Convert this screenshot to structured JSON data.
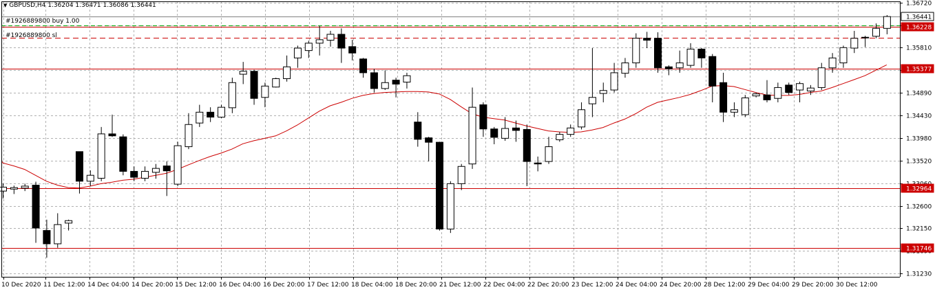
{
  "window": {
    "symbol_label": "GBPUSD,H4",
    "ohlc_text": "1.36204 1.36471 1.36086 1.36441",
    "menu_arrow": "triangle-down-icon"
  },
  "trade_labels": {
    "buy_label": "#1926889800 buy 1.00",
    "sl_label": "#1926889800 sl"
  },
  "price_tags": {
    "bid": "1.36441",
    "entry": "1.36228",
    "level_upper": "1.35377",
    "level_lower_1": "1.32964",
    "level_lower_2": "1.31746"
  },
  "colors": {
    "bull_body": "#ffffff",
    "bear_body": "#000000",
    "ma_line": "#cc0000",
    "level_line": "#cc0000",
    "grid": "#b0b0b0",
    "bid_line": "#808080",
    "tp_line": "#00a000"
  },
  "chart_data": {
    "type": "candlestick",
    "symbol": "GBPUSD",
    "timeframe": "H4",
    "y_axis": {
      "ticks": [
        "1.36720",
        "1.36260",
        "1.35810",
        "1.35350",
        "1.34890",
        "1.34430",
        "1.33980",
        "1.33520",
        "1.33060",
        "1.32600",
        "1.32150",
        "1.31690",
        "1.31230"
      ],
      "ylim": [
        1.3123,
        1.3672
      ]
    },
    "x_axis": {
      "ticks": [
        "10 Dec 2020",
        "11 Dec 12:00",
        "14 Dec 04:00",
        "14 Dec 20:00",
        "15 Dec 12:00",
        "16 Dec 04:00",
        "16 Dec 20:00",
        "17 Dec 12:00",
        "18 Dec 04:00",
        "18 Dec 20:00",
        "21 Dec 12:00",
        "22 Dec 04:00",
        "22 Dec 20:00",
        "23 Dec 12:00",
        "24 Dec 04:00",
        "24 Dec 20:00",
        "28 Dec 12:00",
        "29 Dec 04:00",
        "29 Dec 20:00",
        "30 Dec 12:00"
      ]
    },
    "grid": true,
    "horizontal_levels": [
      {
        "price": 1.36228,
        "label": "1.36228",
        "style": "solid"
      },
      {
        "price": 1.35377,
        "label": "1.35377",
        "style": "solid"
      },
      {
        "price": 1.32964,
        "label": "1.32964",
        "style": "solid"
      },
      {
        "price": 1.31746,
        "label": "1.31746",
        "style": "solid"
      },
      {
        "price": 1.3601,
        "label": "",
        "style": "dashed"
      },
      {
        "price": 1.3626,
        "label": "",
        "style": "dashed-green"
      },
      {
        "price": 1.36441,
        "label": "1.36441",
        "style": "bid"
      }
    ],
    "candles": [
      {
        "o": 1.329,
        "h": 1.3305,
        "l": 1.3275,
        "c": 1.3298
      },
      {
        "o": 1.3294,
        "h": 1.3301,
        "l": 1.3284,
        "c": 1.3297
      },
      {
        "o": 1.3296,
        "h": 1.3305,
        "l": 1.329,
        "c": 1.33
      },
      {
        "o": 1.3302,
        "h": 1.3309,
        "l": 1.3185,
        "c": 1.3215
      },
      {
        "o": 1.321,
        "h": 1.3232,
        "l": 1.3155,
        "c": 1.3183
      },
      {
        "o": 1.3183,
        "h": 1.3245,
        "l": 1.3175,
        "c": 1.3222
      },
      {
        "o": 1.3225,
        "h": 1.3232,
        "l": 1.321,
        "c": 1.323
      },
      {
        "o": 1.337,
        "h": 1.337,
        "l": 1.3285,
        "c": 1.331
      },
      {
        "o": 1.331,
        "h": 1.3332,
        "l": 1.33,
        "c": 1.3322
      },
      {
        "o": 1.3316,
        "h": 1.342,
        "l": 1.331,
        "c": 1.3406
      },
      {
        "o": 1.3406,
        "h": 1.3445,
        "l": 1.34,
        "c": 1.3402
      },
      {
        "o": 1.34,
        "h": 1.3405,
        "l": 1.3322,
        "c": 1.333
      },
      {
        "o": 1.333,
        "h": 1.334,
        "l": 1.331,
        "c": 1.3318
      },
      {
        "o": 1.3316,
        "h": 1.334,
        "l": 1.331,
        "c": 1.333
      },
      {
        "o": 1.3328,
        "h": 1.3345,
        "l": 1.3315,
        "c": 1.3336
      },
      {
        "o": 1.3341,
        "h": 1.335,
        "l": 1.328,
        "c": 1.3331
      },
      {
        "o": 1.3304,
        "h": 1.339,
        "l": 1.33,
        "c": 1.3382
      },
      {
        "o": 1.338,
        "h": 1.3448,
        "l": 1.3375,
        "c": 1.3425
      },
      {
        "o": 1.3428,
        "h": 1.3465,
        "l": 1.342,
        "c": 1.345
      },
      {
        "o": 1.345,
        "h": 1.346,
        "l": 1.343,
        "c": 1.344
      },
      {
        "o": 1.344,
        "h": 1.3465,
        "l": 1.3438,
        "c": 1.346
      },
      {
        "o": 1.3459,
        "h": 1.352,
        "l": 1.3448,
        "c": 1.351
      },
      {
        "o": 1.3527,
        "h": 1.3552,
        "l": 1.3507,
        "c": 1.3533
      },
      {
        "o": 1.3533,
        "h": 1.3536,
        "l": 1.3465,
        "c": 1.3478
      },
      {
        "o": 1.348,
        "h": 1.351,
        "l": 1.346,
        "c": 1.3503
      },
      {
        "o": 1.3501,
        "h": 1.352,
        "l": 1.35,
        "c": 1.3518
      },
      {
        "o": 1.3518,
        "h": 1.3565,
        "l": 1.3512,
        "c": 1.3542
      },
      {
        "o": 1.356,
        "h": 1.3585,
        "l": 1.354,
        "c": 1.358
      },
      {
        "o": 1.3575,
        "h": 1.3595,
        "l": 1.356,
        "c": 1.359
      },
      {
        "o": 1.359,
        "h": 1.3625,
        "l": 1.3565,
        "c": 1.3597
      },
      {
        "o": 1.3596,
        "h": 1.3615,
        "l": 1.3583,
        "c": 1.3608
      },
      {
        "o": 1.3608,
        "h": 1.362,
        "l": 1.355,
        "c": 1.358
      },
      {
        "o": 1.3583,
        "h": 1.3597,
        "l": 1.3555,
        "c": 1.357
      },
      {
        "o": 1.3558,
        "h": 1.356,
        "l": 1.352,
        "c": 1.353
      },
      {
        "o": 1.353,
        "h": 1.3538,
        "l": 1.349,
        "c": 1.3498
      },
      {
        "o": 1.3498,
        "h": 1.3535,
        "l": 1.3495,
        "c": 1.351
      },
      {
        "o": 1.3515,
        "h": 1.352,
        "l": 1.348,
        "c": 1.3507
      },
      {
        "o": 1.3511,
        "h": 1.353,
        "l": 1.3498,
        "c": 1.3524
      },
      {
        "o": 1.343,
        "h": 1.345,
        "l": 1.338,
        "c": 1.3395
      },
      {
        "o": 1.3398,
        "h": 1.34,
        "l": 1.335,
        "c": 1.3389
      },
      {
        "o": 1.3389,
        "h": 1.339,
        "l": 1.321,
        "c": 1.3213
      },
      {
        "o": 1.3213,
        "h": 1.331,
        "l": 1.3205,
        "c": 1.3305
      },
      {
        "o": 1.3305,
        "h": 1.3345,
        "l": 1.3292,
        "c": 1.334
      },
      {
        "o": 1.3345,
        "h": 1.35,
        "l": 1.3335,
        "c": 1.346
      },
      {
        "o": 1.3465,
        "h": 1.347,
        "l": 1.34,
        "c": 1.3416
      },
      {
        "o": 1.3416,
        "h": 1.342,
        "l": 1.3385,
        "c": 1.3399
      },
      {
        "o": 1.3397,
        "h": 1.344,
        "l": 1.3392,
        "c": 1.3417
      },
      {
        "o": 1.3418,
        "h": 1.3433,
        "l": 1.339,
        "c": 1.3413
      },
      {
        "o": 1.3415,
        "h": 1.3425,
        "l": 1.33,
        "c": 1.335
      },
      {
        "o": 1.3347,
        "h": 1.336,
        "l": 1.333,
        "c": 1.3345
      },
      {
        "o": 1.335,
        "h": 1.34,
        "l": 1.3345,
        "c": 1.338
      },
      {
        "o": 1.3394,
        "h": 1.341,
        "l": 1.339,
        "c": 1.3405
      },
      {
        "o": 1.3405,
        "h": 1.3425,
        "l": 1.34,
        "c": 1.3418
      },
      {
        "o": 1.342,
        "h": 1.347,
        "l": 1.3415,
        "c": 1.3455
      },
      {
        "o": 1.3467,
        "h": 1.358,
        "l": 1.344,
        "c": 1.348
      },
      {
        "o": 1.3488,
        "h": 1.351,
        "l": 1.347,
        "c": 1.3494
      },
      {
        "o": 1.3495,
        "h": 1.355,
        "l": 1.349,
        "c": 1.353
      },
      {
        "o": 1.3529,
        "h": 1.356,
        "l": 1.352,
        "c": 1.355
      },
      {
        "o": 1.355,
        "h": 1.361,
        "l": 1.354,
        "c": 1.36
      },
      {
        "o": 1.36,
        "h": 1.3613,
        "l": 1.358,
        "c": 1.3596
      },
      {
        "o": 1.36,
        "h": 1.3612,
        "l": 1.353,
        "c": 1.354
      },
      {
        "o": 1.3542,
        "h": 1.3545,
        "l": 1.3525,
        "c": 1.3538
      },
      {
        "o": 1.354,
        "h": 1.3575,
        "l": 1.353,
        "c": 1.355
      },
      {
        "o": 1.3545,
        "h": 1.359,
        "l": 1.354,
        "c": 1.3578
      },
      {
        "o": 1.3578,
        "h": 1.358,
        "l": 1.354,
        "c": 1.356
      },
      {
        "o": 1.3563,
        "h": 1.3568,
        "l": 1.347,
        "c": 1.3503
      },
      {
        "o": 1.351,
        "h": 1.353,
        "l": 1.343,
        "c": 1.345
      },
      {
        "o": 1.345,
        "h": 1.347,
        "l": 1.344,
        "c": 1.3455
      },
      {
        "o": 1.3445,
        "h": 1.3485,
        "l": 1.344,
        "c": 1.3479
      },
      {
        "o": 1.3483,
        "h": 1.349,
        "l": 1.348,
        "c": 1.3487
      },
      {
        "o": 1.3485,
        "h": 1.3515,
        "l": 1.347,
        "c": 1.3475
      },
      {
        "o": 1.3478,
        "h": 1.351,
        "l": 1.347,
        "c": 1.35
      },
      {
        "o": 1.3505,
        "h": 1.351,
        "l": 1.3485,
        "c": 1.349
      },
      {
        "o": 1.3495,
        "h": 1.3512,
        "l": 1.347,
        "c": 1.3508
      },
      {
        "o": 1.3493,
        "h": 1.3505,
        "l": 1.3485,
        "c": 1.3499
      },
      {
        "o": 1.35,
        "h": 1.355,
        "l": 1.3495,
        "c": 1.354
      },
      {
        "o": 1.354,
        "h": 1.357,
        "l": 1.353,
        "c": 1.356
      },
      {
        "o": 1.355,
        "h": 1.3585,
        "l": 1.354,
        "c": 1.3581
      },
      {
        "o": 1.358,
        "h": 1.3615,
        "l": 1.357,
        "c": 1.36
      },
      {
        "o": 1.3602,
        "h": 1.3605,
        "l": 1.3582,
        "c": 1.3601
      },
      {
        "o": 1.3604,
        "h": 1.363,
        "l": 1.36,
        "c": 1.362
      },
      {
        "o": 1.362,
        "h": 1.3647,
        "l": 1.3608,
        "c": 1.3644
      }
    ],
    "moving_average": [
      1.3347,
      1.3341,
      1.3334,
      1.3322,
      1.331,
      1.3302,
      1.3297,
      1.3296,
      1.33,
      1.3305,
      1.3308,
      1.3312,
      1.3314,
      1.3318,
      1.3322,
      1.3326,
      1.3334,
      1.3343,
      1.3352,
      1.336,
      1.3367,
      1.3375,
      1.3386,
      1.3392,
      1.3397,
      1.3402,
      1.3412,
      1.3424,
      1.3438,
      1.3452,
      1.3463,
      1.347,
      1.3478,
      1.3484,
      1.3488,
      1.349,
      1.3491,
      1.3492,
      1.3492,
      1.3491,
      1.3487,
      1.3476,
      1.3461,
      1.3447,
      1.344,
      1.3437,
      1.3434,
      1.3428,
      1.3422,
      1.3417,
      1.3412,
      1.341,
      1.3409,
      1.341,
      1.3414,
      1.3419,
      1.3428,
      1.3436,
      1.3447,
      1.346,
      1.347,
      1.3475,
      1.348,
      1.3486,
      1.3494,
      1.3503,
      1.3504,
      1.3502,
      1.3496,
      1.349,
      1.3485,
      1.3484,
      1.3484,
      1.3486,
      1.349,
      1.3493,
      1.35,
      1.3508,
      1.3516,
      1.3524,
      1.3535,
      1.3546
    ]
  }
}
